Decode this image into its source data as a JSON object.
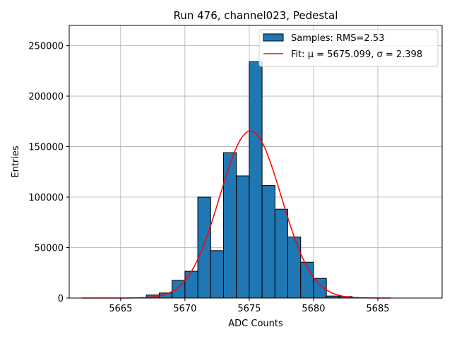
{
  "chart_data": {
    "type": "bar",
    "title": "Run 476, channel023, Pedestal",
    "xlabel": "ADC Counts",
    "ylabel": "Entries",
    "xlim": [
      5661,
      5690
    ],
    "ylim": [
      0,
      270000
    ],
    "xticks": [
      5665,
      5670,
      5675,
      5680,
      5685
    ],
    "yticks": [
      0,
      50000,
      100000,
      150000,
      200000,
      250000
    ],
    "grid": true,
    "legend_placement": "top-right",
    "bin_width": 1,
    "histogram": {
      "name": "Samples: RMS=2.53",
      "color": "#1f77b4",
      "edge_color": "#000000",
      "bin_starts": [
        5667,
        5668,
        5669,
        5670,
        5671,
        5672,
        5673,
        5674,
        5675,
        5676,
        5677,
        5678,
        5679,
        5680,
        5681,
        5682,
        5683
      ],
      "values": [
        3000,
        5000,
        17500,
        26500,
        100000,
        47000,
        144000,
        121000,
        234000,
        111500,
        88000,
        60500,
        35500,
        19500,
        2000,
        1500,
        300
      ]
    },
    "fit": {
      "name": "Fit: μ = 5675.099, σ = 2.398",
      "color": "#ff0000",
      "mu": 5675.099,
      "sigma": 2.398,
      "amplitude": 165500,
      "x_range": [
        5662,
        5686
      ]
    }
  }
}
